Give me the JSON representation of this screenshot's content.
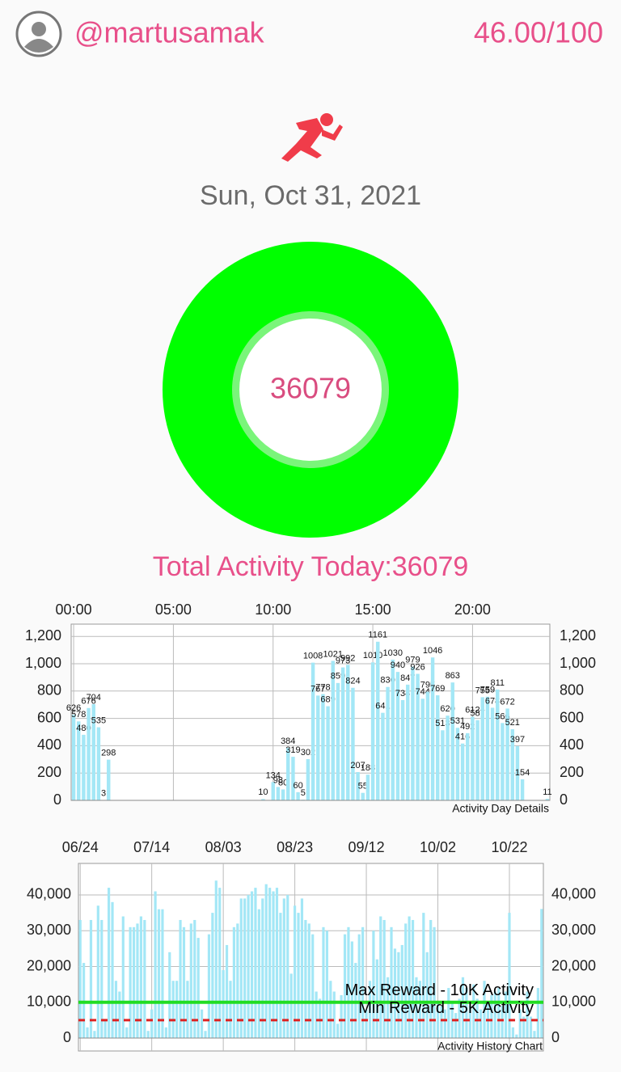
{
  "header": {
    "username": "@martusamak",
    "score": "46.00/100"
  },
  "date": "Sun, Oct 31, 2021",
  "ring": {
    "value": 36079
  },
  "total_label": "Total Activity Today:36079",
  "chart_data": [
    {
      "type": "bar",
      "footer": "Activity Day Details",
      "color": "#a3e7f6",
      "data_labels": true,
      "grid": true,
      "categories": [
        "00:00",
        null,
        null,
        null,
        null,
        null,
        null,
        null,
        null,
        null,
        null,
        null,
        null,
        null,
        null,
        null,
        null,
        null,
        null,
        null,
        "05:00",
        null,
        null,
        null,
        null,
        null,
        null,
        null,
        null,
        null,
        null,
        null,
        null,
        null,
        null,
        null,
        null,
        null,
        null,
        null,
        "10:00",
        null,
        null,
        null,
        null,
        null,
        null,
        null,
        null,
        null,
        null,
        null,
        null,
        null,
        null,
        null,
        null,
        null,
        null,
        null,
        "15:00",
        null,
        null,
        null,
        null,
        null,
        null,
        null,
        null,
        null,
        null,
        null,
        null,
        null,
        null,
        null,
        null,
        null,
        null,
        null,
        "20:00",
        null,
        null,
        null,
        null,
        null,
        null,
        null,
        null,
        null,
        null,
        null,
        null,
        null,
        null,
        null
      ],
      "values": [
        626,
        578,
        480,
        676,
        704,
        535,
        3,
        298,
        null,
        null,
        null,
        null,
        null,
        null,
        null,
        null,
        null,
        null,
        null,
        null,
        null,
        null,
        null,
        null,
        null,
        null,
        null,
        null,
        null,
        null,
        null,
        null,
        null,
        null,
        null,
        null,
        null,
        null,
        10,
        null,
        134,
        98,
        80,
        384,
        319,
        60,
        5,
        302,
        1008,
        767,
        778,
        689,
        1021,
        859,
        973,
        992,
        824,
        207,
        55,
        188,
        1010,
        1161,
        641,
        830,
        1030,
        940,
        734,
        847,
        979,
        926,
        744,
        795,
        1046,
        769,
        513,
        620,
        863,
        531,
        416,
        492,
        612,
        587,
        755,
        759,
        678,
        811,
        566,
        672,
        521,
        397,
        154,
        null,
        null,
        null,
        null,
        11
      ],
      "ylim": [
        0,
        1290
      ],
      "yticks": [
        0,
        200,
        400,
        600,
        800,
        {
          "value": 1000,
          "label": "1,000"
        },
        {
          "value": 1200,
          "label": "1,200"
        }
      ]
    },
    {
      "type": "bar",
      "footer": "Activity History Chart",
      "color": "#a3e7f6",
      "data_labels": false,
      "grid": true,
      "categories": [
        "06/24",
        null,
        null,
        null,
        null,
        null,
        null,
        null,
        null,
        null,
        null,
        null,
        null,
        null,
        null,
        null,
        null,
        null,
        null,
        null,
        "07/14",
        null,
        null,
        null,
        null,
        null,
        null,
        null,
        null,
        null,
        null,
        null,
        null,
        null,
        null,
        null,
        null,
        null,
        null,
        null,
        "08/03",
        null,
        null,
        null,
        null,
        null,
        null,
        null,
        null,
        null,
        null,
        null,
        null,
        null,
        null,
        null,
        null,
        null,
        null,
        null,
        "08/23",
        null,
        null,
        null,
        null,
        null,
        null,
        null,
        null,
        null,
        null,
        null,
        null,
        null,
        null,
        null,
        null,
        null,
        null,
        null,
        "09/12",
        null,
        null,
        null,
        null,
        null,
        null,
        null,
        null,
        null,
        null,
        null,
        null,
        null,
        null,
        null,
        null,
        null,
        null,
        null,
        "10/02",
        null,
        null,
        null,
        null,
        null,
        null,
        null,
        null,
        null,
        null,
        null,
        null,
        null,
        null,
        null,
        null,
        null,
        null,
        null,
        "10/22",
        null,
        null,
        null,
        null,
        null,
        null,
        null,
        null,
        null
      ],
      "values": [
        33000,
        21000,
        3000,
        33000,
        2000,
        37000,
        33000,
        5000,
        42000,
        38000,
        16000,
        13000,
        34000,
        3000,
        31000,
        31000,
        32000,
        34000,
        33000,
        2000,
        8000,
        41000,
        36000,
        36000,
        3000,
        24000,
        16000,
        16000,
        33000,
        31000,
        16000,
        32000,
        33000,
        28000,
        8000,
        2000,
        29000,
        35000,
        44000,
        42000,
        19000,
        26000,
        16000,
        31000,
        32000,
        39000,
        39000,
        40000,
        41000,
        42000,
        36000,
        39000,
        43000,
        42000,
        41000,
        42000,
        35000,
        39000,
        40000,
        18000,
        37000,
        35000,
        39000,
        33000,
        32000,
        29000,
        13000,
        11000,
        31000,
        30000,
        16000,
        13000,
        4000,
        12000,
        29000,
        31000,
        27000,
        21000,
        29000,
        31000,
        8000,
        16000,
        30000,
        22000,
        34000,
        33000,
        17000,
        31000,
        25000,
        24000,
        26000,
        32000,
        34000,
        33000,
        17000,
        16000,
        35000,
        24000,
        33000,
        31000,
        10000,
        9000,
        8000,
        14000,
        10000,
        7000,
        11000,
        17000,
        14000,
        9000,
        15000,
        11000,
        8000,
        16000,
        10000,
        12000,
        13000,
        14000,
        9000,
        13000,
        35000,
        3000,
        1000,
        8000,
        6000,
        13000,
        6000,
        2000,
        14000,
        36079
      ],
      "ylim": [
        -3600,
        48800
      ],
      "yticks": [
        0,
        {
          "value": 10000,
          "label": "10,000"
        },
        {
          "value": 20000,
          "label": "20,000"
        },
        {
          "value": 30000,
          "label": "30,000"
        },
        {
          "value": 40000,
          "label": "40,000"
        }
      ],
      "reference_lines": [
        {
          "label": "Max Reward - 10K Activity",
          "value": 10000,
          "color": "#22dd22",
          "dashed": false
        },
        {
          "label": "Min Reward - 5K Activity",
          "value": 5000,
          "color": "#dd2222",
          "dashed": true
        }
      ]
    }
  ]
}
